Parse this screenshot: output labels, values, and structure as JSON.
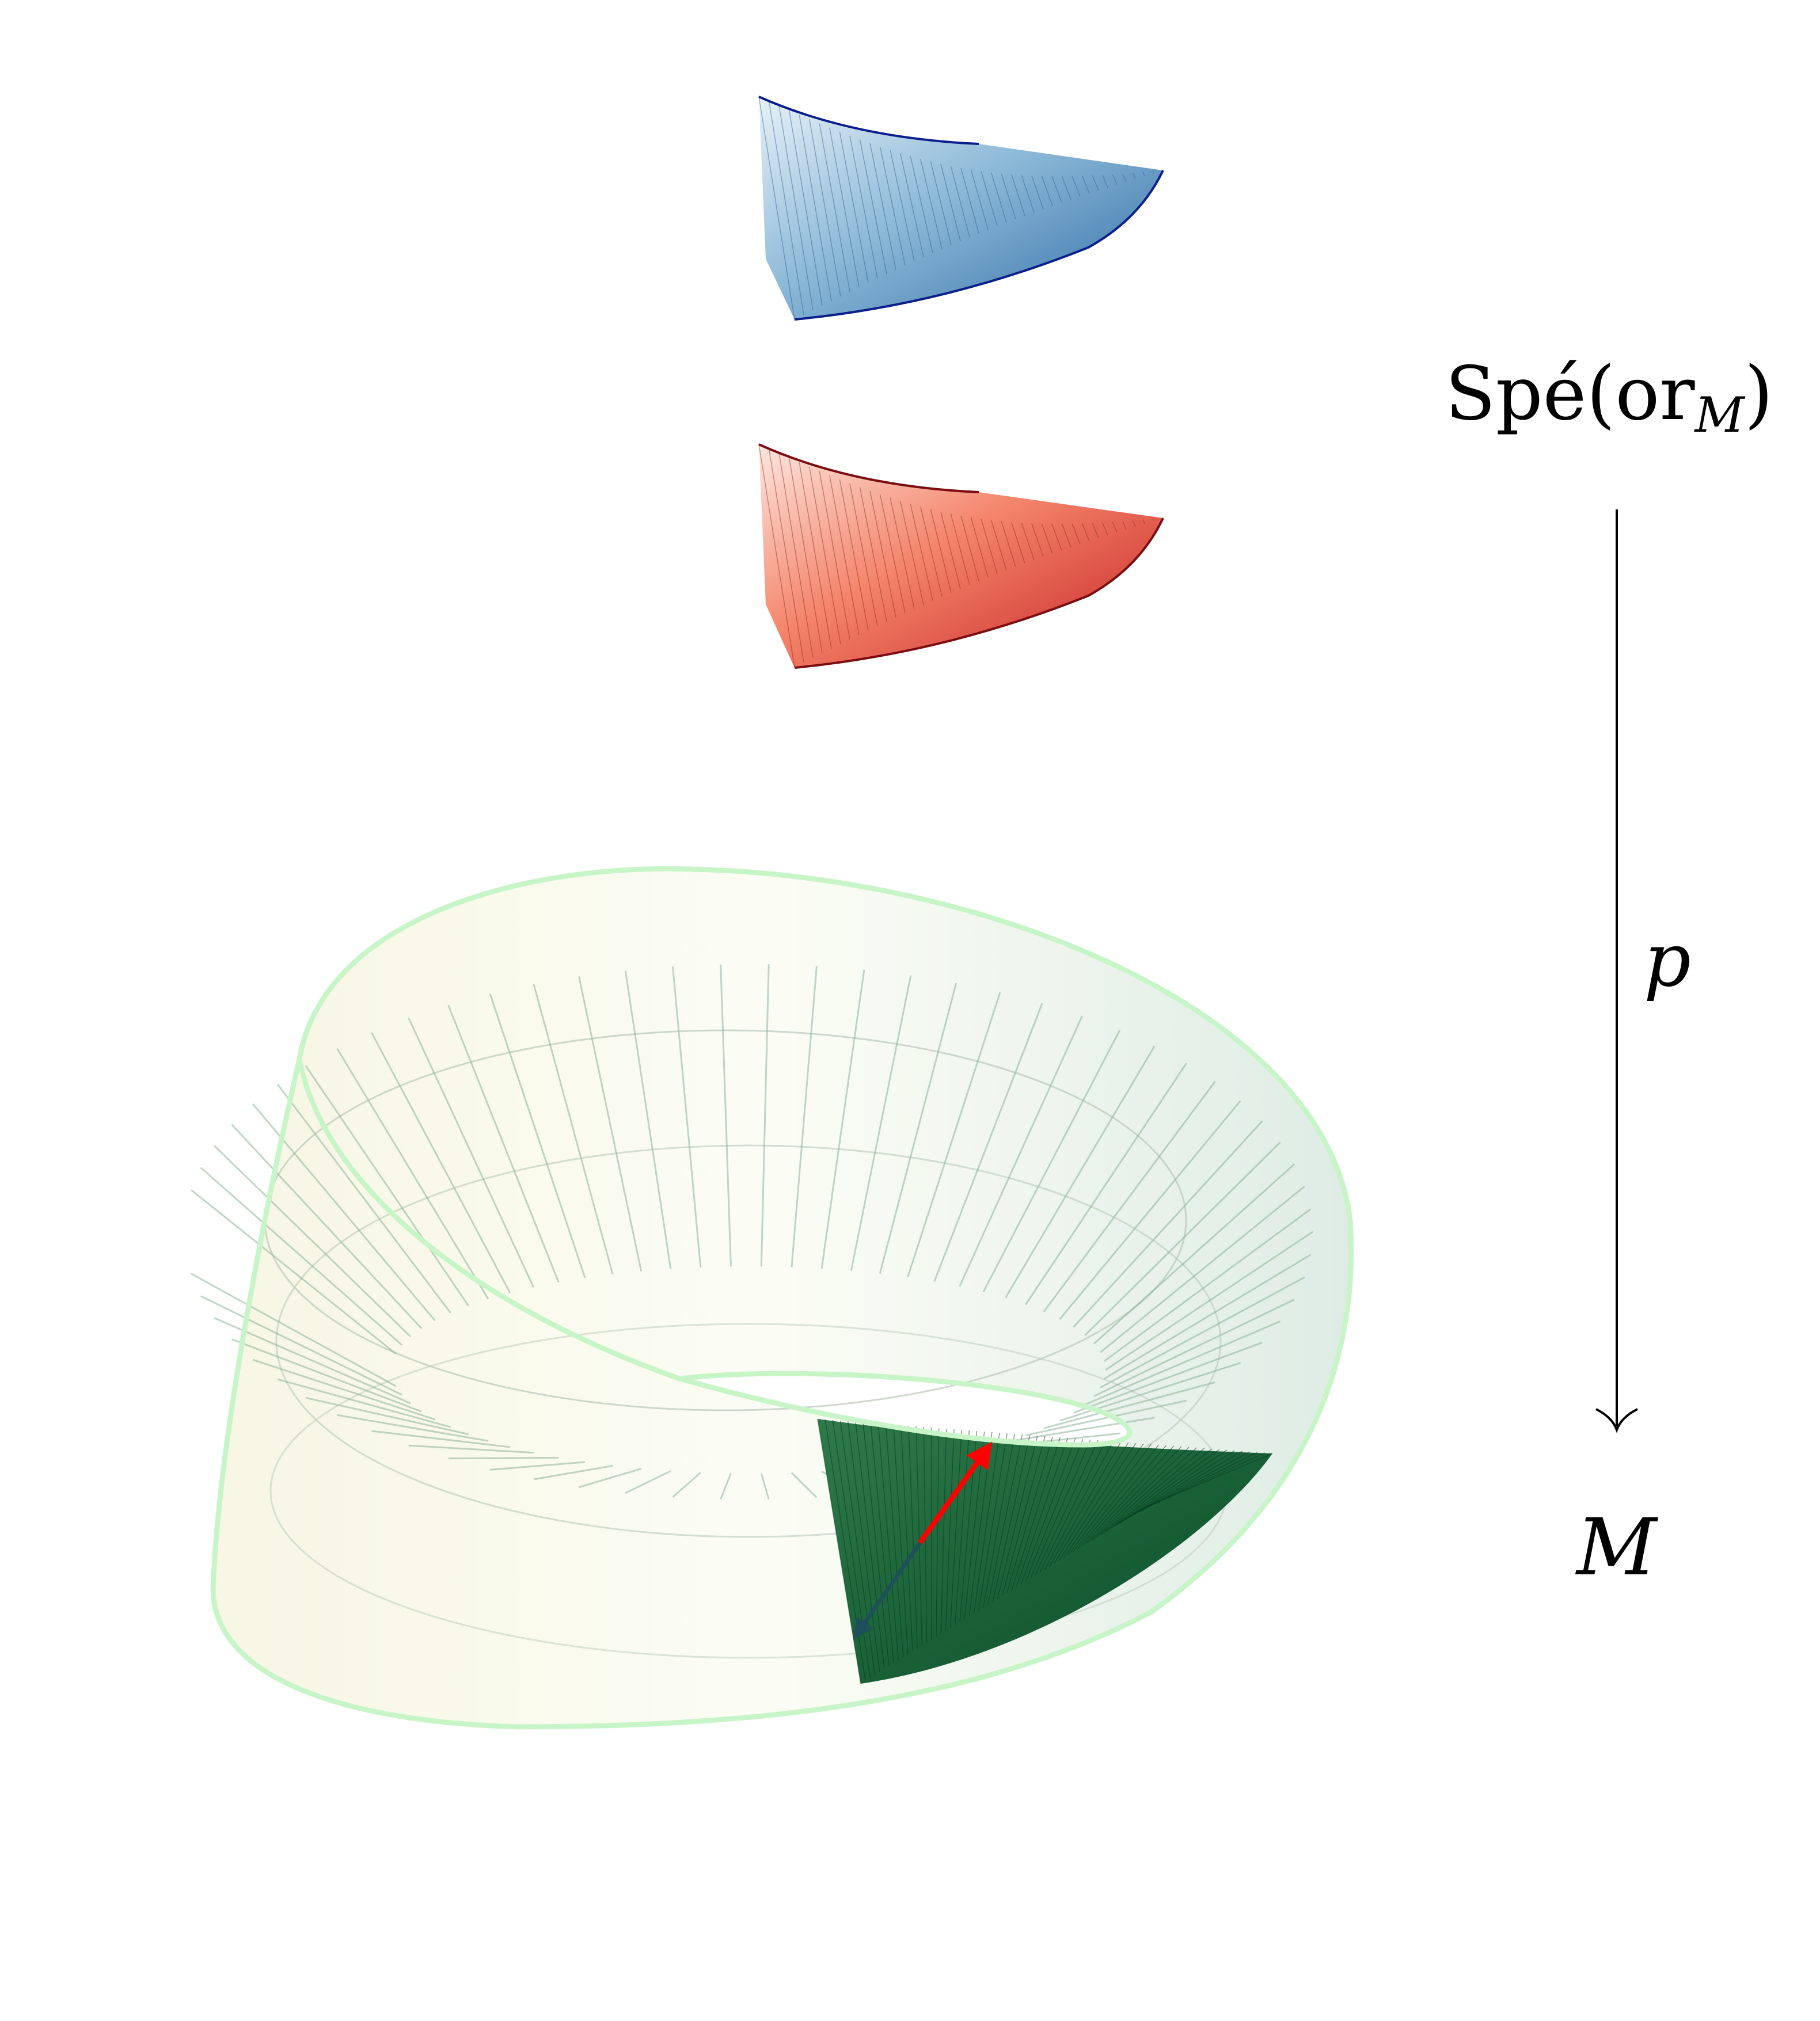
{
  "labels": {
    "spe_base": "Spé",
    "spe_open": "(",
    "spe_or": "or",
    "spe_sub": "M",
    "spe_close": ")",
    "map_label": "p",
    "base_label": "M"
  },
  "colors": {
    "blue_sheet": "#4a86b8",
    "blue_edge": "#0a1f8a",
    "red_sheet": "#e0463a",
    "red_edge": "#7a0d10",
    "mobius_fill": "#e8f3e8",
    "mobius_edge": "#c8f5c8",
    "mobius_highlight": "#0b5a2c",
    "arrow_red": "#ff0000",
    "arrow_dark": "#1e4f5a",
    "axis_arrow": "#000000"
  }
}
